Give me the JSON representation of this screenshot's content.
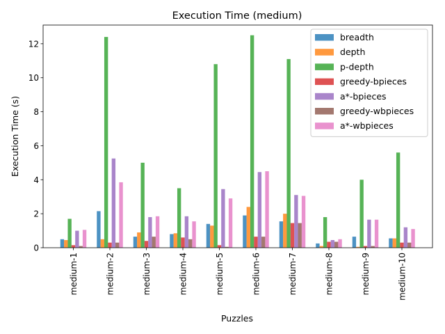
{
  "chart_data": {
    "type": "bar",
    "title": "Execution Time (medium)",
    "xlabel": "Puzzles",
    "ylabel": "Execution Time (s)",
    "ylim": [
      0,
      13.1
    ],
    "yticks": [
      "0",
      "2",
      "4",
      "6",
      "8",
      "10",
      "12"
    ],
    "grid": false,
    "legend_position": "top-right",
    "categories": [
      "medium-1",
      "medium-2",
      "medium-3",
      "medium-4",
      "medium-5",
      "medium-6",
      "medium-7",
      "medium-8",
      "medium-9",
      "medium-10"
    ],
    "series": [
      {
        "name": "breadth",
        "color": "#1f77b4",
        "values": [
          0.5,
          2.15,
          0.65,
          0.8,
          1.4,
          1.9,
          1.55,
          0.25,
          0.65,
          0.55
        ]
      },
      {
        "name": "depth",
        "color": "#ff7f0e",
        "values": [
          0.45,
          0.5,
          0.9,
          0.85,
          1.3,
          2.4,
          2.0,
          0.1,
          0.05,
          0.55
        ]
      },
      {
        "name": "p-depth",
        "color": "#2ca02c",
        "values": [
          1.7,
          12.4,
          5.0,
          3.5,
          10.8,
          12.5,
          11.1,
          1.8,
          4.0,
          5.6
        ]
      },
      {
        "name": "greedy-bpieces",
        "color": "#d62728",
        "values": [
          0.15,
          0.3,
          0.4,
          0.6,
          0.15,
          0.65,
          1.45,
          0.35,
          0.1,
          0.3
        ]
      },
      {
        "name": "a*-bpieces",
        "color": "#9467bd",
        "values": [
          1.0,
          5.25,
          1.8,
          1.85,
          3.45,
          4.45,
          3.1,
          0.45,
          1.65,
          1.2
        ]
      },
      {
        "name": "greedy-wbpieces",
        "color": "#8c564b",
        "values": [
          0.1,
          0.3,
          0.65,
          0.5,
          0.05,
          0.65,
          1.45,
          0.35,
          0.1,
          0.3
        ]
      },
      {
        "name": "a*-wbpieces",
        "color": "#e377c2",
        "values": [
          1.05,
          3.85,
          1.85,
          1.55,
          2.9,
          4.5,
          3.05,
          0.5,
          1.65,
          1.1
        ]
      }
    ]
  }
}
